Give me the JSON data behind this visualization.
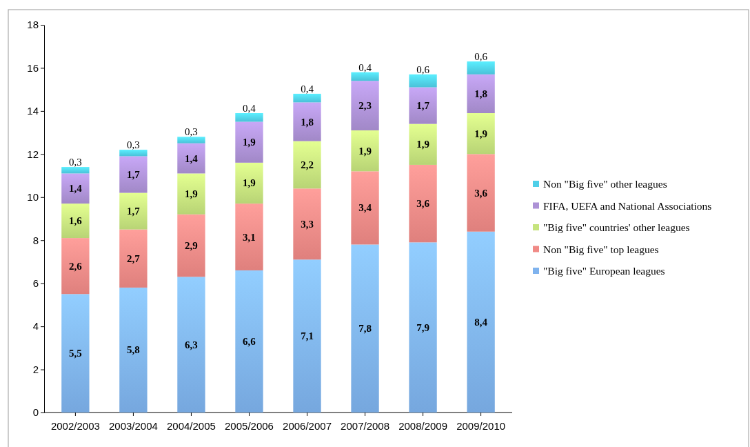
{
  "chart_data": {
    "type": "bar",
    "stacked": true,
    "categories": [
      "2002/2003",
      "2003/2004",
      "2004/2005",
      "2005/2006",
      "2006/2007",
      "2007/2008",
      "2008/2009",
      "2009/2010"
    ],
    "ylim": [
      0,
      18
    ],
    "yticks": [
      0,
      2,
      4,
      6,
      8,
      10,
      12,
      14,
      16,
      18
    ],
    "grid": false,
    "legend": "right",
    "series": [
      {
        "name": "\"Big five\" European leagues",
        "color": "#7fb3ee",
        "values": [
          5.5,
          5.8,
          6.3,
          6.6,
          7.1,
          7.8,
          7.9,
          8.4
        ],
        "value_labels": [
          "5,5",
          "5,8",
          "6,3",
          "6,6",
          "7,1",
          "7,8",
          "7,9",
          "8,4"
        ]
      },
      {
        "name": "Non \"Big five\" top leagues",
        "color": "#f08a86",
        "values": [
          2.6,
          2.7,
          2.9,
          3.1,
          3.3,
          3.4,
          3.6,
          3.6
        ],
        "value_labels": [
          "2,6",
          "2,7",
          "2,9",
          "3,1",
          "3,3",
          "3,4",
          "3,6",
          "3,6"
        ]
      },
      {
        "name": "\"Big five\" countries' other leagues",
        "color": "#c6e47e",
        "values": [
          1.6,
          1.7,
          1.9,
          1.9,
          2.2,
          1.9,
          1.9,
          1.9
        ],
        "value_labels": [
          "1,6",
          "1,7",
          "1,9",
          "1,9",
          "2,2",
          "1,9",
          "1,9",
          "1,9"
        ]
      },
      {
        "name": "FIFA, UEFA and National Associations",
        "color": "#ad92d6",
        "values": [
          1.4,
          1.7,
          1.4,
          1.9,
          1.8,
          2.3,
          1.7,
          1.8
        ],
        "value_labels": [
          "1,4",
          "1,7",
          "1,4",
          "1,9",
          "1,8",
          "2,3",
          "1,7",
          "1,8"
        ]
      },
      {
        "name": "Non \"Big five\" other leagues",
        "color": "#4fcfe8",
        "values": [
          0.3,
          0.3,
          0.3,
          0.4,
          0.4,
          0.4,
          0.6,
          0.6
        ],
        "value_labels": [
          "0,3",
          "0,3",
          "0,3",
          "0,4",
          "0,4",
          "0,4",
          "0,6",
          "0,6"
        ]
      }
    ]
  }
}
